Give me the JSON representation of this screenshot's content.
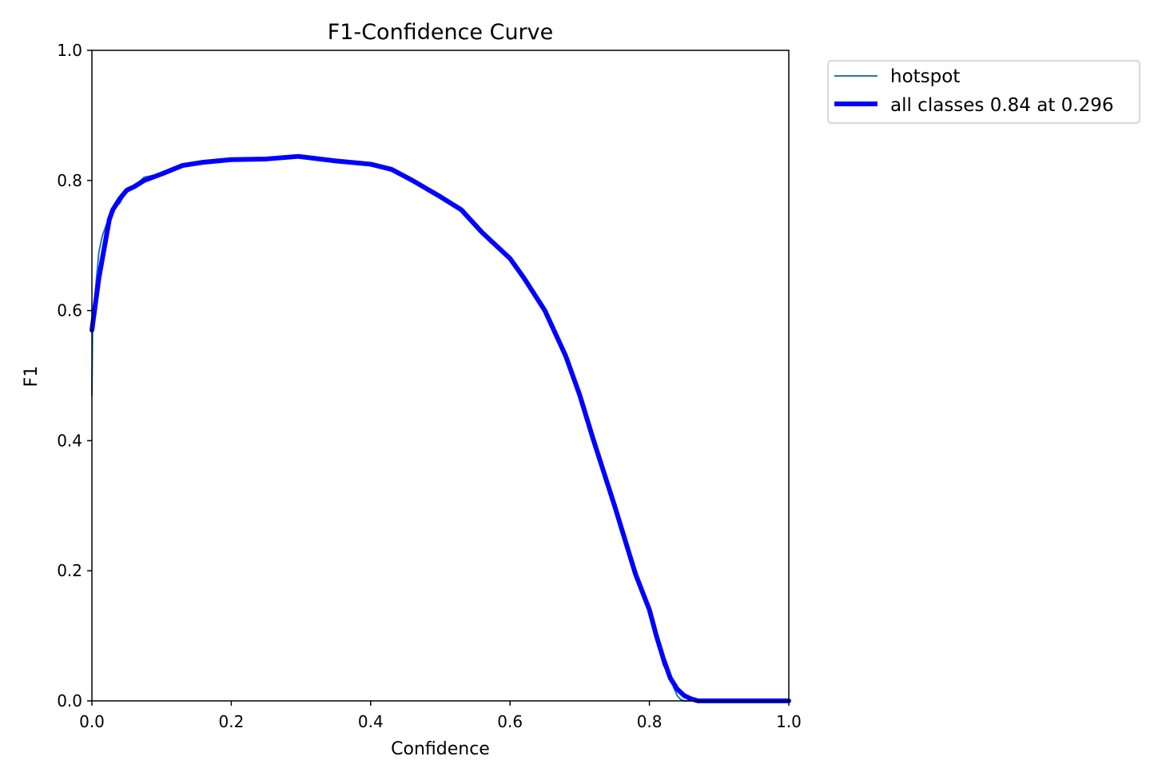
{
  "chart_data": {
    "type": "line",
    "title": "F1-Confidence Curve",
    "xlabel": "Confidence",
    "ylabel": "F1",
    "xlim": [
      0,
      1
    ],
    "ylim": [
      0,
      1
    ],
    "xticks": [
      "0.0",
      "0.2",
      "0.4",
      "0.6",
      "0.8",
      "1.0"
    ],
    "yticks": [
      "0.0",
      "0.2",
      "0.4",
      "0.6",
      "0.8",
      "1.0"
    ],
    "grid": false,
    "legend_placement": "outside-top-right",
    "series": [
      {
        "name": "hotspot",
        "color": "#1f77b4",
        "x": [
          0.0,
          0.001,
          0.005,
          0.01,
          0.015,
          0.02,
          0.03,
          0.04,
          0.05,
          0.06,
          0.075,
          0.1,
          0.13,
          0.16,
          0.2,
          0.25,
          0.296,
          0.35,
          0.4,
          0.43,
          0.46,
          0.5,
          0.53,
          0.56,
          0.6,
          0.62,
          0.65,
          0.68,
          0.7,
          0.72,
          0.75,
          0.78,
          0.8,
          0.81,
          0.82,
          0.83,
          0.835,
          0.84,
          0.845,
          0.85,
          0.86,
          0.88,
          0.9,
          1.0
        ],
        "y": [
          0.47,
          0.57,
          0.63,
          0.69,
          0.715,
          0.73,
          0.755,
          0.765,
          0.785,
          0.79,
          0.805,
          0.81,
          0.823,
          0.828,
          0.832,
          0.833,
          0.837,
          0.83,
          0.825,
          0.817,
          0.8,
          0.775,
          0.755,
          0.72,
          0.68,
          0.65,
          0.6,
          0.53,
          0.47,
          0.4,
          0.3,
          0.2,
          0.145,
          0.1,
          0.055,
          0.04,
          0.02,
          0.008,
          0.002,
          0.0,
          0.0,
          0.0,
          0.0,
          0.0
        ]
      },
      {
        "name": "all classes 0.84 at 0.296",
        "color": "#0000ff",
        "x": [
          0.0,
          0.005,
          0.01,
          0.02,
          0.025,
          0.03,
          0.04,
          0.05,
          0.06,
          0.075,
          0.1,
          0.13,
          0.16,
          0.2,
          0.25,
          0.296,
          0.35,
          0.4,
          0.43,
          0.46,
          0.5,
          0.53,
          0.56,
          0.6,
          0.62,
          0.65,
          0.68,
          0.7,
          0.72,
          0.75,
          0.78,
          0.8,
          0.81,
          0.82,
          0.83,
          0.84,
          0.85,
          0.86,
          0.87,
          0.88,
          0.9,
          1.0
        ],
        "y": [
          0.57,
          0.61,
          0.65,
          0.71,
          0.74,
          0.755,
          0.772,
          0.785,
          0.79,
          0.8,
          0.81,
          0.823,
          0.828,
          0.832,
          0.833,
          0.837,
          0.83,
          0.825,
          0.817,
          0.8,
          0.775,
          0.755,
          0.72,
          0.68,
          0.65,
          0.6,
          0.53,
          0.47,
          0.4,
          0.3,
          0.195,
          0.14,
          0.1,
          0.065,
          0.035,
          0.018,
          0.008,
          0.003,
          0.0,
          0.0,
          0.0,
          0.0
        ]
      }
    ]
  }
}
